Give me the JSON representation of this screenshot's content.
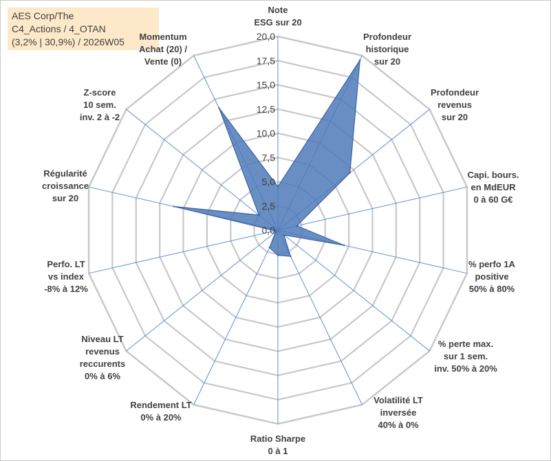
{
  "chart_data": {
    "type": "radar",
    "title_lines": [
      "AES Corp/The",
      "C4_Actions / 4_OTAN",
      "(3,2% | 30,9%) / 2026W05"
    ],
    "rlim": [
      0,
      20
    ],
    "ticks": [
      "0,0",
      "2,5",
      "5,0",
      "7,5",
      "10,0",
      "12,5",
      "15,0",
      "17,5",
      "20,0"
    ],
    "tick_values": [
      0,
      2.5,
      5,
      7.5,
      10,
      12.5,
      15,
      17.5,
      20
    ],
    "categories": [
      [
        "Note",
        "ESG sur 20"
      ],
      [
        "Profondeur",
        "historique",
        "sur 20"
      ],
      [
        "Profondeur",
        "revenus",
        "sur 20"
      ],
      [
        "Capi. bours.",
        "en MdEUR",
        "0 à 60 G€"
      ],
      [
        "% perfo 1A",
        "positive",
        "50% à 80%"
      ],
      [
        "% perte max.",
        "sur 1 sem.",
        "inv. 50% à 20%"
      ],
      [
        "Volatilité LT",
        "inversée",
        "40% à 0%"
      ],
      [
        "Ratio Sharpe",
        "0 à 1"
      ],
      [
        "Rendement LT",
        "0% à 20%"
      ],
      [
        "Niveau LT",
        "revenus",
        "reccurents",
        "0% à 6%"
      ],
      [
        "Perfo. LT",
        "vs index",
        "-8% à 12%"
      ],
      [
        "Régularité",
        "croissance",
        "sur 20"
      ],
      [
        "Z-score",
        "10 sem.",
        "inv. 2 à -2"
      ],
      [
        "Momentum",
        "Achat (20) /",
        "Vente (0)"
      ]
    ],
    "series": [
      {
        "name": "AES Corp/The",
        "values": [
          4.5,
          19.5,
          9.5,
          2.0,
          7.0,
          0.8,
          3.0,
          2.6,
          2.0,
          0.3,
          0.3,
          11.0,
          2.5,
          14.0
        ]
      }
    ],
    "colors": {
      "fill": "#4f7ab8",
      "stroke": "#3b63a6",
      "grid": "#c8c8c8",
      "spoke": "#5b8fd6"
    }
  }
}
